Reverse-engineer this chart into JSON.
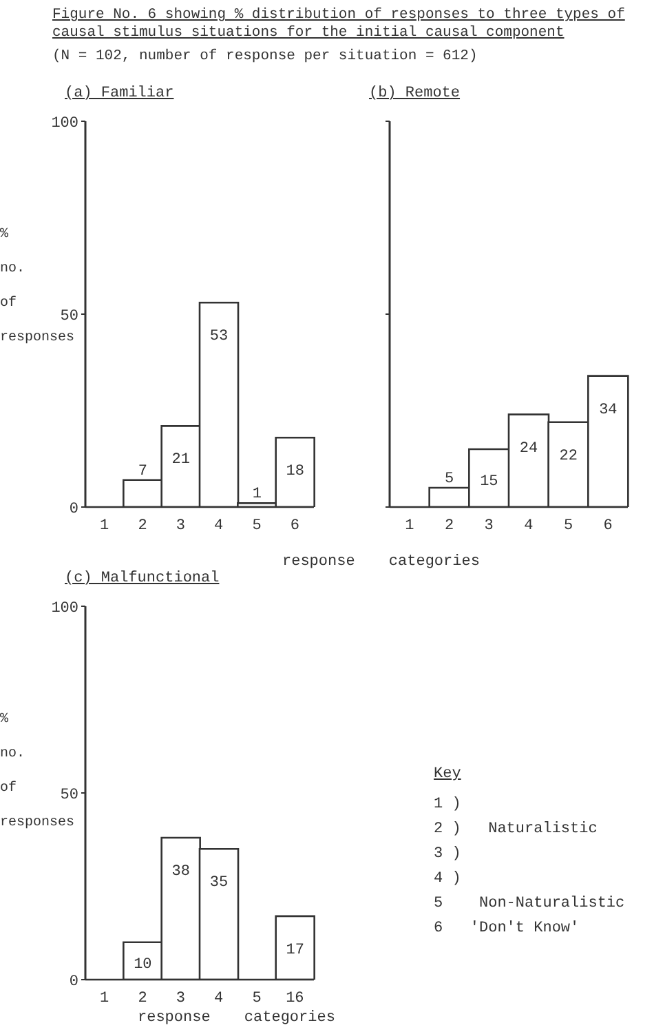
{
  "chart_data": [
    {
      "type": "bar",
      "title": "Figure No. 6 showing % distribution of responses to three types of causal stimulus situations for the initial causal component",
      "subtitle": "(N = 102, number of response per situation = 612)",
      "series": [
        {
          "name": "(a) Familiar",
          "color": "#ffffff",
          "values": [
            0,
            7,
            21,
            53,
            1,
            18
          ],
          "value_labels": [
            null,
            "7",
            "21",
            "53",
            "1",
            "18"
          ]
        }
      ],
      "categories": [
        "1",
        "2",
        "3",
        "4",
        "5",
        "6"
      ],
      "ylim": [
        0,
        100
      ],
      "yticks": [
        0,
        50,
        100
      ],
      "ylabel": "% no. of responses",
      "xlabel": "response categories",
      "grid": false
    },
    {
      "type": "bar",
      "series": [
        {
          "name": "(b) Remote",
          "color": "#ffffff",
          "values": [
            0,
            5,
            15,
            24,
            22,
            34
          ],
          "value_labels": [
            null,
            "5",
            "15",
            "24",
            "22",
            "34"
          ]
        }
      ],
      "categories": [
        "1",
        "2",
        "3",
        "4",
        "5",
        "6"
      ],
      "ylim": [
        0,
        100
      ],
      "yticks": [
        {
          "value": 0,
          "label": null
        },
        {
          "value": 50,
          "label": null
        },
        {
          "value": 100,
          "label": null
        }
      ],
      "tick_labels": "x",
      "grid": false
    },
    {
      "type": "bar",
      "series": [
        {
          "name": "(c) Malfunctional",
          "color": "#ffffff",
          "values": [
            0,
            10,
            38,
            35,
            0,
            17
          ],
          "value_labels": [
            null,
            "10",
            "38",
            "35",
            null,
            "17"
          ]
        }
      ],
      "categories": [
        "1",
        "2",
        "3",
        "4",
        "5",
        "16"
      ],
      "ylim": [
        0,
        100
      ],
      "yticks": [
        0,
        50,
        100
      ],
      "ylabel": "% no. of responses",
      "xlabel": "response categories",
      "grid": false,
      "annotations": [
        "Key",
        "1 )",
        "2 )   Naturalistic",
        "3 )",
        "4 )",
        "5    Non-Naturalistic",
        "6   'Don't Know'"
      ]
    }
  ]
}
